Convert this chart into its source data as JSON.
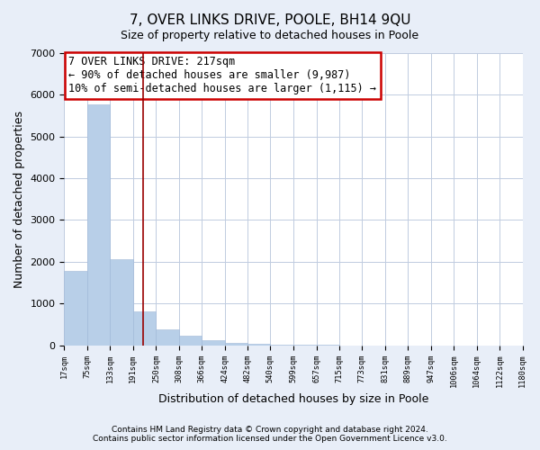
{
  "title": "7, OVER LINKS DRIVE, POOLE, BH14 9QU",
  "subtitle": "Size of property relative to detached houses in Poole",
  "xlabel": "Distribution of detached houses by size in Poole",
  "ylabel": "Number of detached properties",
  "bar_color": "#b8cfe8",
  "vline_color": "#990000",
  "vline_x": 217,
  "annotation_line1": "7 OVER LINKS DRIVE: 217sqm",
  "annotation_line2": "← 90% of detached houses are smaller (9,987)",
  "annotation_line3": "10% of semi-detached houses are larger (1,115) →",
  "annotation_box_facecolor": "#ffffff",
  "annotation_box_edgecolor": "#cc0000",
  "bin_edges": [
    17,
    75,
    133,
    191,
    250,
    308,
    366,
    424,
    482,
    540,
    599,
    657,
    715,
    773,
    831,
    889,
    947,
    1006,
    1064,
    1122,
    1180
  ],
  "bin_heights": [
    1780,
    5770,
    2070,
    820,
    370,
    225,
    110,
    55,
    30,
    10,
    5,
    5,
    0,
    0,
    0,
    0,
    0,
    0,
    0,
    0
  ],
  "ylim": [
    0,
    7000
  ],
  "yticks": [
    0,
    1000,
    2000,
    3000,
    4000,
    5000,
    6000,
    7000
  ],
  "tick_labels": [
    "17sqm",
    "75sqm",
    "133sqm",
    "191sqm",
    "250sqm",
    "308sqm",
    "366sqm",
    "424sqm",
    "482sqm",
    "540sqm",
    "599sqm",
    "657sqm",
    "715sqm",
    "773sqm",
    "831sqm",
    "889sqm",
    "947sqm",
    "1006sqm",
    "1064sqm",
    "1122sqm",
    "1180sqm"
  ],
  "footer_line1": "Contains HM Land Registry data © Crown copyright and database right 2024.",
  "footer_line2": "Contains public sector information licensed under the Open Government Licence v3.0.",
  "bg_color": "#e8eef8",
  "plot_bg_color": "#ffffff",
  "grid_color": "#c0cce0"
}
